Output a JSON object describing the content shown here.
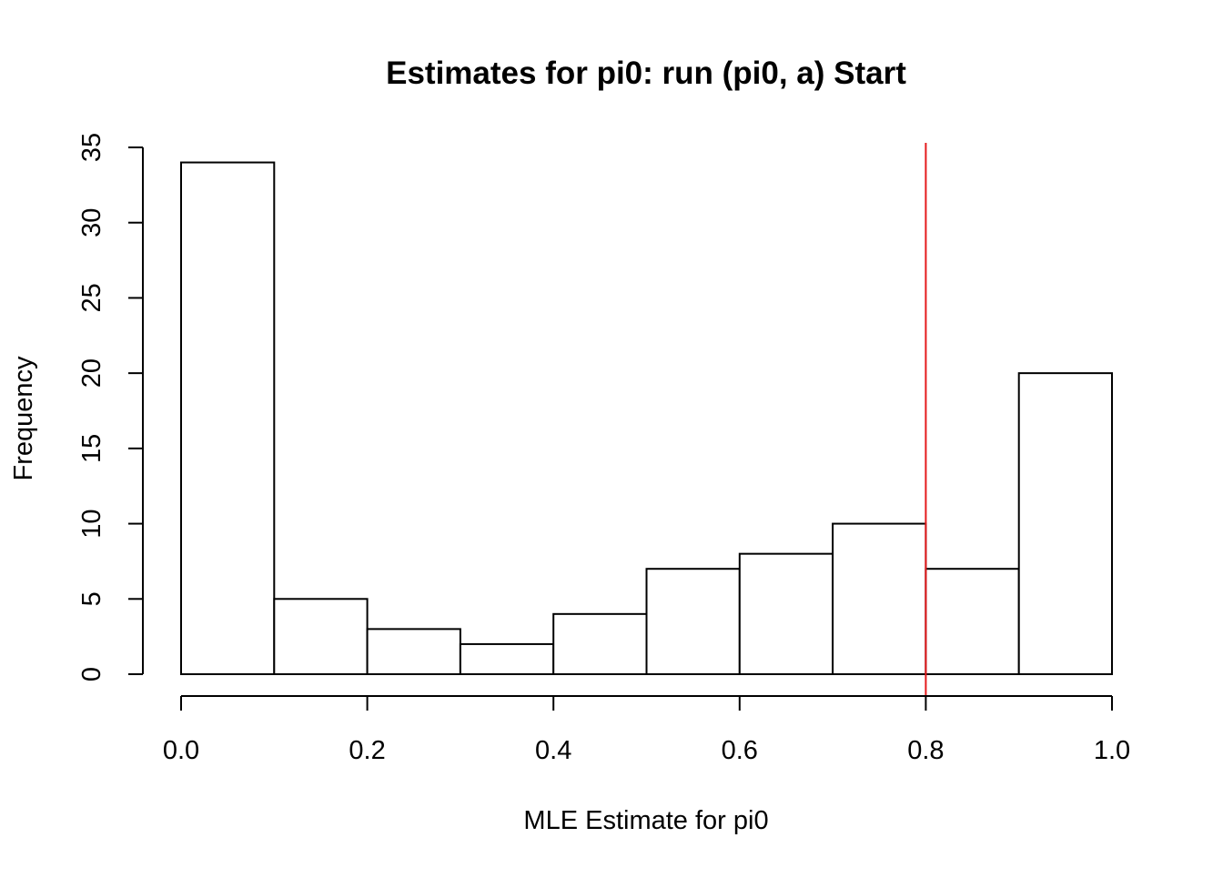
{
  "chart_data": {
    "type": "bar",
    "subtype": "histogram",
    "title": "Estimates for pi0: run (pi0, a) Start",
    "xlabel": "MLE Estimate for pi0",
    "ylabel": "Frequency",
    "bins": [
      {
        "start": 0.0,
        "end": 0.1,
        "count": 34
      },
      {
        "start": 0.1,
        "end": 0.2,
        "count": 5
      },
      {
        "start": 0.2,
        "end": 0.3,
        "count": 3
      },
      {
        "start": 0.3,
        "end": 0.4,
        "count": 2
      },
      {
        "start": 0.4,
        "end": 0.5,
        "count": 4
      },
      {
        "start": 0.5,
        "end": 0.6,
        "count": 7
      },
      {
        "start": 0.6,
        "end": 0.7,
        "count": 8
      },
      {
        "start": 0.7,
        "end": 0.8,
        "count": 10
      },
      {
        "start": 0.8,
        "end": 0.9,
        "count": 7
      },
      {
        "start": 0.9,
        "end": 1.0,
        "count": 20
      }
    ],
    "xlim": [
      0.0,
      1.0
    ],
    "ylim": [
      0,
      35
    ],
    "x_ticks": [
      0.0,
      0.2,
      0.4,
      0.6,
      0.8,
      1.0
    ],
    "x_tick_labels": [
      "0.0",
      "0.2",
      "0.4",
      "0.6",
      "0.8",
      "1.0"
    ],
    "y_ticks": [
      0,
      5,
      10,
      15,
      20,
      25,
      30,
      35
    ],
    "y_tick_labels": [
      "0",
      "5",
      "10",
      "15",
      "20",
      "25",
      "30",
      "35"
    ],
    "reference_line": {
      "orientation": "vertical",
      "x": 0.8,
      "color": "#e41a1c"
    },
    "bar_fill": "#ffffff",
    "bar_stroke": "#000000",
    "grid": false,
    "legend": "none"
  }
}
